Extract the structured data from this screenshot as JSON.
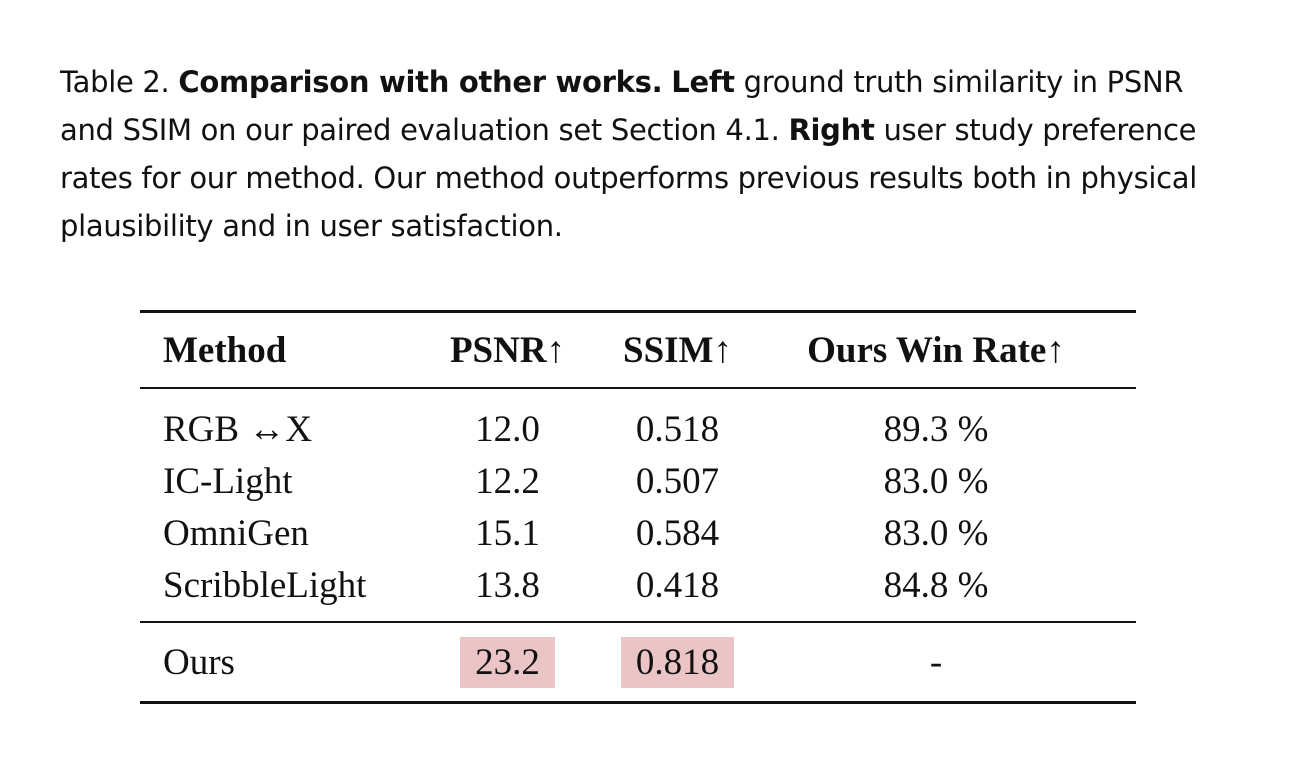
{
  "caption": {
    "label": "Table 2.",
    "parts": [
      {
        "text": "Comparison with other works.",
        "bold": true
      },
      {
        "text": "Left",
        "bold": true
      },
      {
        "text": "ground truth similarity in PSNR and SSIM on our paired evaluation set Section 4.1.",
        "bold": false
      },
      {
        "text": "Right",
        "bold": true
      },
      {
        "text": "user study preference rates for our method. Our method outperforms previous results both in physical plausibility and in user satisfaction.",
        "bold": false
      }
    ]
  },
  "table": {
    "header": [
      "Method",
      "PSNR↑",
      "SSIM↑",
      "Ours Win Rate↑"
    ],
    "rows": [
      [
        "RGB ↔X",
        "12.0",
        "0.518",
        "89.3 %"
      ],
      [
        "IC-Light",
        "12.2",
        "0.507",
        "83.0 %"
      ],
      [
        "OmniGen",
        "15.1",
        "0.584",
        "83.0 %"
      ],
      [
        "ScribbleLight",
        "13.8",
        "0.418",
        "84.8 %"
      ]
    ],
    "footer_row": [
      "Ours",
      "23.2",
      "0.818",
      "-"
    ],
    "footer_highlight": [
      false,
      true,
      true,
      false
    ],
    "highlight_color": "#ebc4c6"
  }
}
